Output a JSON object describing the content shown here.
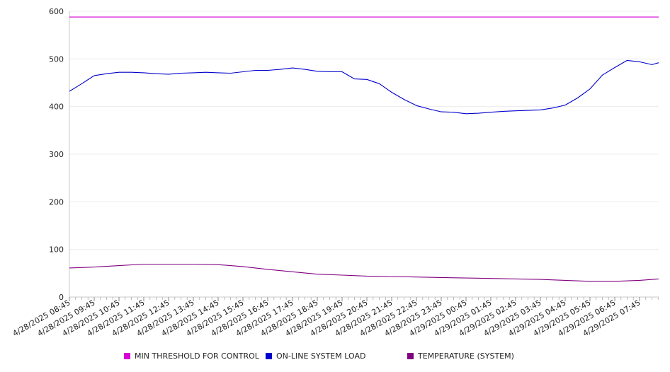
{
  "chart_data": {
    "type": "line",
    "title": "",
    "xlabel": "",
    "ylabel": "",
    "ylim": [
      0,
      600
    ],
    "yticks": [
      0,
      100,
      200,
      300,
      400,
      500,
      600
    ],
    "grid": true,
    "legend_position": "bottom",
    "x_tick_labels": [
      "4/28/2025 08:45",
      "4/28/2025 09:45",
      "4/28/2025 10:45",
      "4/28/2025 11:45",
      "4/28/2025 12:45",
      "4/28/2025 13:45",
      "4/28/2025 14:45",
      "4/28/2025 15:45",
      "4/28/2025 16:45",
      "4/28/2025 17:45",
      "4/28/2025 18:45",
      "4/28/2025 19:45",
      "4/28/2025 20:45",
      "4/28/2025 21:45",
      "4/28/2025 22:45",
      "4/28/2025 23:45",
      "4/29/2025 00:45",
      "4/29/2025 01:45",
      "4/29/2025 02:45",
      "4/29/2025 03:45",
      "4/29/2025 04:45",
      "4/29/2025 05:45",
      "4/29/2025 06:45",
      "4/29/2025 07:45"
    ],
    "series": [
      {
        "name": "MIN THRESHOLD FOR CONTROL",
        "color": "#d400d4",
        "x": [
          "4/28/2025 08:45",
          "4/29/2025 08:45"
        ],
        "values": [
          588,
          588
        ]
      },
      {
        "name": "ON-LINE SYSTEM LOAD",
        "color": "#0000cc",
        "x": [
          "4/28/2025 08:45",
          "4/28/2025 09:15",
          "4/28/2025 09:45",
          "4/28/2025 10:15",
          "4/28/2025 10:45",
          "4/28/2025 11:15",
          "4/28/2025 11:45",
          "4/28/2025 12:15",
          "4/28/2025 12:45",
          "4/28/2025 13:15",
          "4/28/2025 13:45",
          "4/28/2025 14:15",
          "4/28/2025 14:45",
          "4/28/2025 15:15",
          "4/28/2025 15:45",
          "4/28/2025 16:15",
          "4/28/2025 16:45",
          "4/28/2025 17:15",
          "4/28/2025 17:45",
          "4/28/2025 18:15",
          "4/28/2025 18:45",
          "4/28/2025 19:15",
          "4/28/2025 19:45",
          "4/28/2025 20:15",
          "4/28/2025 20:45",
          "4/28/2025 21:15",
          "4/28/2025 21:45",
          "4/28/2025 22:15",
          "4/28/2025 22:45",
          "4/28/2025 23:15",
          "4/28/2025 23:45",
          "4/29/2025 00:15",
          "4/29/2025 00:45",
          "4/29/2025 01:15",
          "4/29/2025 01:45",
          "4/29/2025 02:15",
          "4/29/2025 02:45",
          "4/29/2025 03:15",
          "4/29/2025 03:45",
          "4/29/2025 04:15",
          "4/29/2025 04:45",
          "4/29/2025 05:15",
          "4/29/2025 05:45",
          "4/29/2025 06:15",
          "4/29/2025 06:45",
          "4/29/2025 07:15",
          "4/29/2025 07:45",
          "4/29/2025 08:15",
          "4/29/2025 08:45"
        ],
        "values": [
          432,
          448,
          465,
          469,
          472,
          472,
          471,
          469,
          468,
          470,
          471,
          472,
          471,
          470,
          473,
          476,
          476,
          478,
          481,
          478,
          474,
          473,
          473,
          458,
          457,
          448,
          430,
          415,
          402,
          395,
          389,
          388,
          385,
          386,
          388,
          390,
          391,
          392,
          393,
          397,
          403,
          418,
          437,
          466,
          482,
          497,
          494,
          488,
          492
        ]
      },
      {
        "name": "TEMPERATURE (SYSTEM)",
        "color": "#800080",
        "x": [
          "4/28/2025 08:45",
          "4/28/2025 09:45",
          "4/28/2025 10:45",
          "4/28/2025 11:45",
          "4/28/2025 12:45",
          "4/28/2025 13:45",
          "4/28/2025 14:45",
          "4/28/2025 15:45",
          "4/28/2025 16:45",
          "4/28/2025 17:45",
          "4/28/2025 18:45",
          "4/28/2025 19:45",
          "4/28/2025 20:45",
          "4/28/2025 21:45",
          "4/28/2025 22:45",
          "4/28/2025 23:45",
          "4/29/2025 00:45",
          "4/29/2025 01:45",
          "4/29/2025 02:45",
          "4/29/2025 03:45",
          "4/29/2025 04:45",
          "4/29/2025 05:45",
          "4/29/2025 06:45",
          "4/29/2025 07:45",
          "4/29/2025 08:45"
        ],
        "values": [
          61,
          63,
          66,
          69,
          69,
          69,
          68,
          64,
          58,
          53,
          48,
          46,
          44,
          43,
          42,
          41,
          40,
          39,
          38,
          37,
          35,
          33,
          33,
          35,
          38
        ]
      }
    ]
  }
}
